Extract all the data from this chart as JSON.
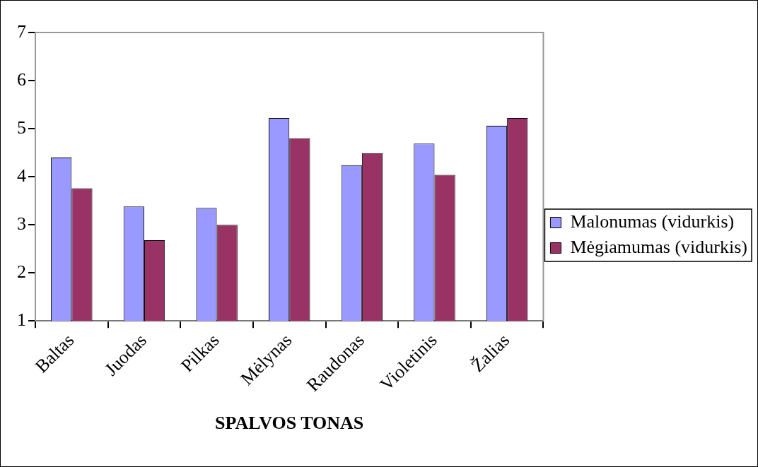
{
  "chart_data": {
    "type": "bar",
    "xlabel": "SPALVOS TONAS",
    "categories": [
      "Baltas",
      "Juodas",
      "Pilkas",
      "Mėlynas",
      "Raudonas",
      "Violetinis",
      "Žalias"
    ],
    "series": [
      {
        "name": "Malonumas (vidurkis)",
        "color": "#9999ff",
        "values": [
          4.4,
          3.38,
          3.35,
          5.22,
          4.24,
          4.69,
          5.06
        ]
      },
      {
        "name": "Mėgiamumas (vidurkis)",
        "color": "#993366",
        "values": [
          3.76,
          2.68,
          3.0,
          4.8,
          4.49,
          4.04,
          5.22
        ]
      }
    ],
    "ylim": [
      1,
      7
    ],
    "yticks": [
      1,
      2,
      3,
      4,
      5,
      6,
      7
    ],
    "grid": false,
    "legend": "right"
  }
}
